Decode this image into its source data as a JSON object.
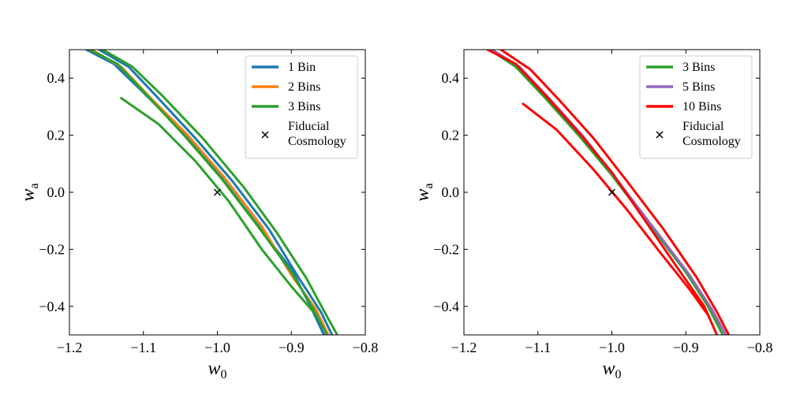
{
  "chart_data": [
    {
      "type": "line",
      "panel": "left",
      "xlabel": "w",
      "xlabel_sub": "0",
      "ylabel": "w",
      "ylabel_sub": "a",
      "xlim": [
        -1.2,
        -0.8
      ],
      "ylim": [
        -0.5,
        0.5
      ],
      "xticks": [
        -1.2,
        -1.1,
        -1.0,
        -0.9,
        -0.8
      ],
      "xtick_labels": [
        "−1.2",
        "−1.1",
        "−1.0",
        "−0.9",
        "−0.8"
      ],
      "yticks": [
        -0.4,
        -0.2,
        0.0,
        0.2,
        0.4
      ],
      "ytick_labels": [
        "−0.4",
        "−0.2",
        "0.0",
        "0.2",
        "0.4"
      ],
      "legend_position": "top-right",
      "legend_label_fiducial": [
        "Fiducial",
        "Cosmology"
      ],
      "fiducial": {
        "x": -1.0,
        "y": 0.0
      },
      "series": [
        {
          "name": "1 Bin",
          "color": "#1f77b4",
          "contours": [
            [
              [
                -1.177,
                0.5
              ],
              [
                -1.14,
                0.45
              ],
              [
                -1.1,
                0.35
              ],
              [
                -1.05,
                0.22
              ],
              [
                -1.0,
                0.07
              ],
              [
                -0.95,
                -0.1
              ],
              [
                -0.9,
                -0.27
              ],
              [
                -0.874,
                -0.4
              ],
              [
                -0.856,
                -0.5
              ]
            ],
            [
              [
                -1.16,
                0.5
              ],
              [
                -1.12,
                0.44
              ],
              [
                -1.08,
                0.33
              ],
              [
                -1.03,
                0.19
              ],
              [
                -0.98,
                0.04
              ],
              [
                -0.93,
                -0.13
              ],
              [
                -0.89,
                -0.3
              ],
              [
                -0.86,
                -0.42
              ],
              [
                -0.845,
                -0.5
              ]
            ]
          ]
        },
        {
          "name": "2 Bins",
          "color": "#ff7f0e",
          "contours": [
            [
              [
                -1.17,
                0.5
              ],
              [
                -1.13,
                0.44
              ],
              [
                -1.09,
                0.33
              ],
              [
                -1.04,
                0.2
              ],
              [
                -0.99,
                0.05
              ],
              [
                -0.94,
                -0.12
              ],
              [
                -0.9,
                -0.29
              ],
              [
                -0.867,
                -0.41
              ],
              [
                -0.85,
                -0.5
              ]
            ]
          ]
        },
        {
          "name": "3 Bins",
          "color": "#2ca02c",
          "contours": [
            [
              [
                -1.173,
                0.5
              ],
              [
                -1.135,
                0.45
              ],
              [
                -1.095,
                0.34
              ],
              [
                -1.045,
                0.2
              ],
              [
                -0.995,
                0.05
              ],
              [
                -0.945,
                -0.12
              ],
              [
                -0.9,
                -0.28
              ],
              [
                -0.87,
                -0.41
              ],
              [
                -0.852,
                -0.5
              ]
            ],
            [
              [
                -1.155,
                0.5
              ],
              [
                -1.115,
                0.44
              ],
              [
                -1.075,
                0.34
              ],
              [
                -1.02,
                0.19
              ],
              [
                -0.965,
                0.02
              ],
              [
                -0.92,
                -0.14
              ],
              [
                -0.88,
                -0.3
              ],
              [
                -0.855,
                -0.42
              ],
              [
                -0.838,
                -0.5
              ]
            ],
            [
              [
                -1.13,
                0.33
              ],
              [
                -1.08,
                0.24
              ],
              [
                -1.03,
                0.11
              ],
              [
                -0.985,
                -0.03
              ],
              [
                -0.94,
                -0.2
              ],
              [
                -0.9,
                -0.33
              ],
              [
                -0.87,
                -0.42
              ]
            ]
          ]
        }
      ]
    },
    {
      "type": "line",
      "panel": "right",
      "xlabel": "w",
      "xlabel_sub": "0",
      "ylabel": "w",
      "ylabel_sub": "a",
      "xlim": [
        -1.2,
        -0.8
      ],
      "ylim": [
        -0.5,
        0.5
      ],
      "xticks": [
        -1.2,
        -1.1,
        -1.0,
        -0.9,
        -0.8
      ],
      "xtick_labels": [
        "−1.2",
        "−1.1",
        "−1.0",
        "−0.9",
        "−0.8"
      ],
      "yticks": [
        -0.4,
        -0.2,
        0.0,
        0.2,
        0.4
      ],
      "ytick_labels": [
        "−0.4",
        "−0.2",
        "0.0",
        "0.2",
        "0.4"
      ],
      "legend_position": "top-right",
      "legend_label_fiducial": [
        "Fiducial",
        "Cosmology"
      ],
      "fiducial": {
        "x": -1.0,
        "y": 0.0
      },
      "series": [
        {
          "name": "3 Bins",
          "color": "#2ca02c",
          "contours": [
            [
              [
                -1.165,
                0.5
              ],
              [
                -1.13,
                0.44
              ],
              [
                -1.09,
                0.33
              ],
              [
                -1.045,
                0.2
              ],
              [
                -1.0,
                0.06
              ],
              [
                -0.95,
                -0.11
              ],
              [
                -0.9,
                -0.28
              ],
              [
                -0.87,
                -0.4
              ],
              [
                -0.85,
                -0.5
              ]
            ]
          ]
        },
        {
          "name": "5 Bins",
          "color": "#9467bd",
          "contours": [
            [
              [
                -1.162,
                0.5
              ],
              [
                -1.125,
                0.44
              ],
              [
                -1.085,
                0.33
              ],
              [
                -1.04,
                0.2
              ],
              [
                -0.995,
                0.05
              ],
              [
                -0.945,
                -0.12
              ],
              [
                -0.895,
                -0.29
              ],
              [
                -0.865,
                -0.41
              ],
              [
                -0.846,
                -0.5
              ]
            ]
          ]
        },
        {
          "name": "10 Bins",
          "color": "#ff0000",
          "contours": [
            [
              [
                -1.168,
                0.5
              ],
              [
                -1.13,
                0.45
              ],
              [
                -1.09,
                0.34
              ],
              [
                -1.045,
                0.21
              ],
              [
                -1.0,
                0.07
              ],
              [
                -0.955,
                -0.1
              ],
              [
                -0.91,
                -0.27
              ],
              [
                -0.875,
                -0.4
              ],
              [
                -0.858,
                -0.5
              ]
            ],
            [
              [
                -1.15,
                0.5
              ],
              [
                -1.11,
                0.43
              ],
              [
                -1.07,
                0.32
              ],
              [
                -1.025,
                0.19
              ],
              [
                -0.98,
                0.04
              ],
              [
                -0.93,
                -0.13
              ],
              [
                -0.885,
                -0.3
              ],
              [
                -0.858,
                -0.42
              ],
              [
                -0.842,
                -0.5
              ]
            ],
            [
              [
                -1.12,
                0.31
              ],
              [
                -1.075,
                0.22
              ],
              [
                -1.025,
                0.08
              ],
              [
                -0.98,
                -0.06
              ],
              [
                -0.935,
                -0.21
              ],
              [
                -0.895,
                -0.34
              ],
              [
                -0.87,
                -0.43
              ]
            ]
          ]
        }
      ]
    }
  ]
}
